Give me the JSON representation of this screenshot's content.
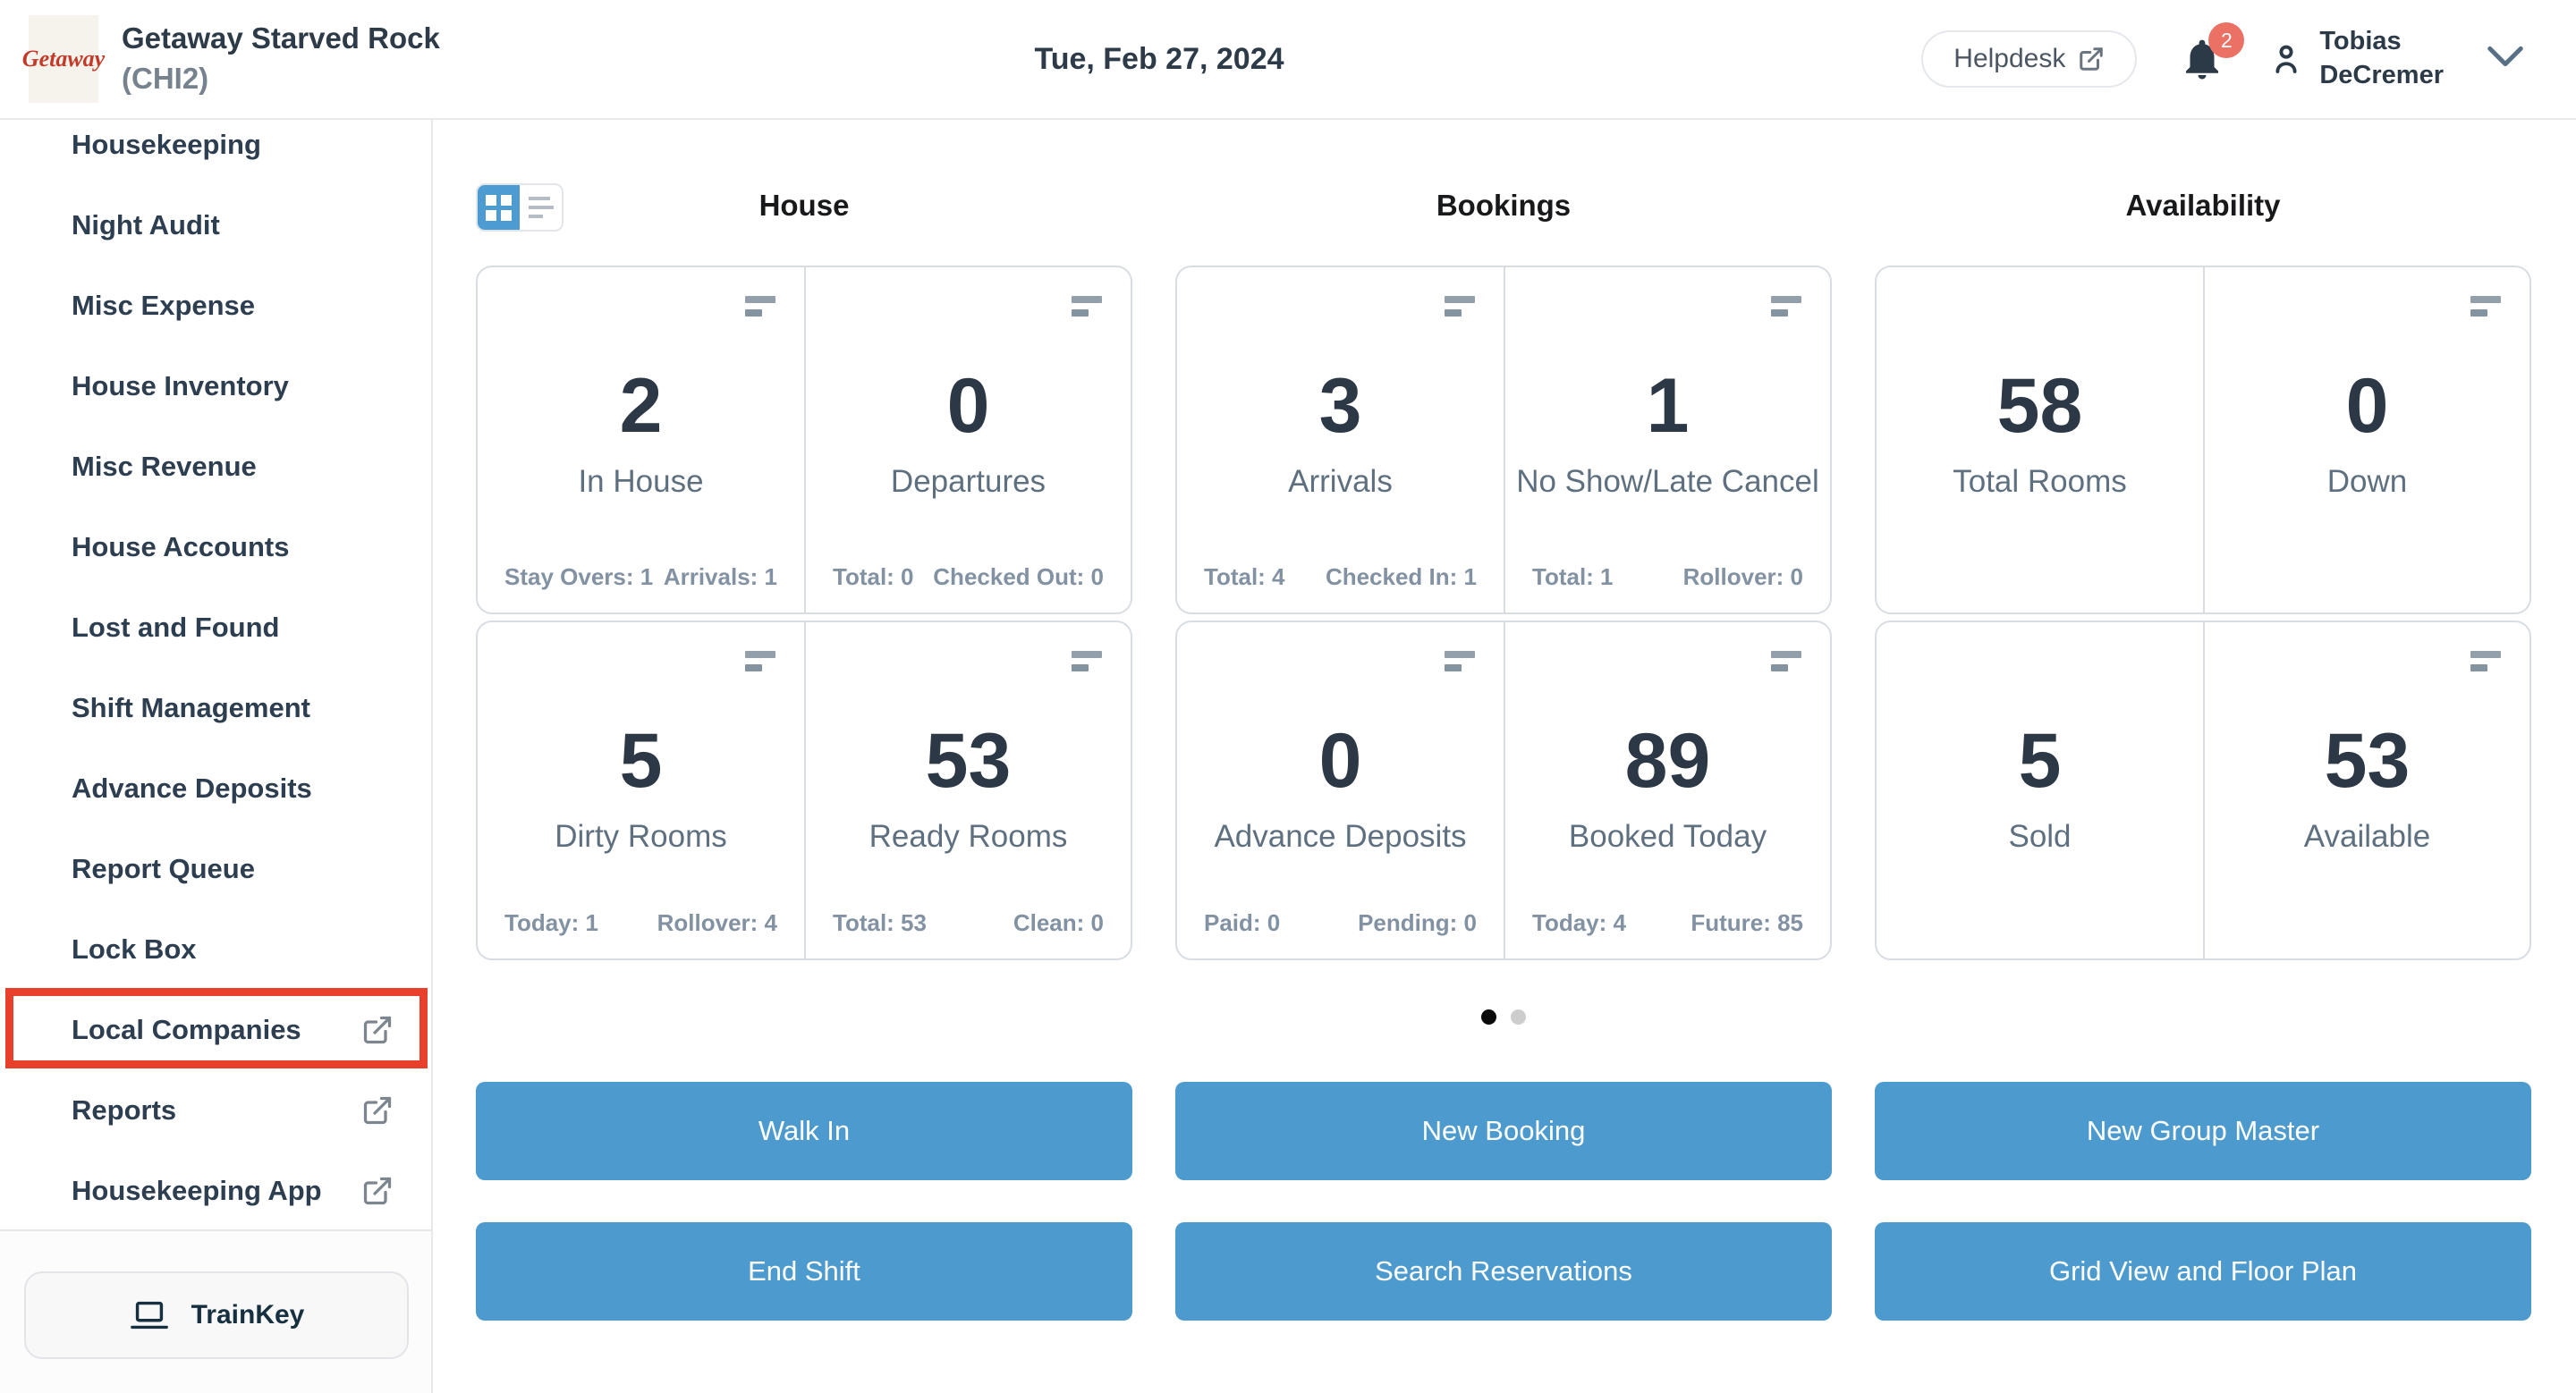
{
  "header": {
    "logo_text": "Getaway",
    "property_name": "Getaway Starved Rock",
    "property_code": "(CHI2)",
    "date": "Tue, Feb 27, 2024",
    "helpdesk_label": "Helpdesk",
    "notification_count": "2",
    "user_name_line1": "Tobias",
    "user_name_line2": "DeCremer"
  },
  "sidebar": {
    "items": [
      {
        "label": "Housekeeping",
        "external": false,
        "highlighted": false
      },
      {
        "label": "Night Audit",
        "external": false,
        "highlighted": false
      },
      {
        "label": "Misc Expense",
        "external": false,
        "highlighted": false
      },
      {
        "label": "House Inventory",
        "external": false,
        "highlighted": false
      },
      {
        "label": "Misc Revenue",
        "external": false,
        "highlighted": false
      },
      {
        "label": "House Accounts",
        "external": false,
        "highlighted": false
      },
      {
        "label": "Lost and Found",
        "external": false,
        "highlighted": false
      },
      {
        "label": "Shift Management",
        "external": false,
        "highlighted": false
      },
      {
        "label": "Advance Deposits",
        "external": false,
        "highlighted": false
      },
      {
        "label": "Report Queue",
        "external": false,
        "highlighted": false
      },
      {
        "label": "Lock Box",
        "external": false,
        "highlighted": false
      },
      {
        "label": "Local Companies",
        "external": true,
        "highlighted": true
      },
      {
        "label": "Reports",
        "external": true,
        "highlighted": false
      },
      {
        "label": "Housekeeping App",
        "external": true,
        "highlighted": false
      }
    ],
    "trainkey_label": "TrainKey"
  },
  "dashboard": {
    "view_toggle": {
      "active": "grid",
      "options": [
        "grid",
        "list"
      ]
    },
    "sections": [
      {
        "title": "House",
        "cards": [
          {
            "value": "2",
            "label": "In House",
            "icon": true,
            "stat_left": "Stay Overs: 1",
            "stat_right": "Arrivals: 1"
          },
          {
            "value": "0",
            "label": "Departures",
            "icon": true,
            "stat_left": "Total: 0",
            "stat_right": "Checked Out: 0"
          },
          {
            "value": "5",
            "label": "Dirty Rooms",
            "icon": true,
            "stat_left": "Today: 1",
            "stat_right": "Rollover: 4"
          },
          {
            "value": "53",
            "label": "Ready Rooms",
            "icon": true,
            "stat_left": "Total: 53",
            "stat_right": "Clean: 0"
          }
        ]
      },
      {
        "title": "Bookings",
        "cards": [
          {
            "value": "3",
            "label": "Arrivals",
            "icon": true,
            "stat_left": "Total: 4",
            "stat_right": "Checked In: 1"
          },
          {
            "value": "1",
            "label": "No Show/Late Cancel",
            "icon": true,
            "stat_left": "Total: 1",
            "stat_right": "Rollover: 0"
          },
          {
            "value": "0",
            "label": "Advance Deposits",
            "icon": true,
            "stat_left": "Paid: 0",
            "stat_right": "Pending: 0"
          },
          {
            "value": "89",
            "label": "Booked Today",
            "icon": true,
            "stat_left": "Today: 4",
            "stat_right": "Future: 85"
          }
        ]
      },
      {
        "title": "Availability",
        "cards": [
          {
            "value": "58",
            "label": "Total Rooms",
            "icon": false
          },
          {
            "value": "0",
            "label": "Down",
            "icon": true
          },
          {
            "value": "5",
            "label": "Sold",
            "icon": false
          },
          {
            "value": "53",
            "label": "Available",
            "icon": true
          }
        ]
      }
    ],
    "carousel": {
      "dot_count": 2,
      "active_index": 0
    },
    "action_buttons": [
      [
        "Walk In",
        "New Booking",
        "New Group Master"
      ],
      [
        "End Shift",
        "Search Reservations",
        "Grid View and Floor Plan"
      ]
    ]
  },
  "icons": {
    "helpdesk": "external-link-icon",
    "notifications": "bell-icon",
    "user": "person-icon",
    "user_menu": "chevron-down-icon",
    "sidebar_external": "external-link-icon",
    "trainkey": "laptop-icon",
    "view_toggle": [
      "grid-view-icon",
      "list-view-icon"
    ],
    "card_corner": "filter-lines-icon"
  },
  "colors": {
    "accent_blue": "#4d9bce",
    "toggle_blue": "#4c9bd1",
    "annotation_red": "#e8402a",
    "badge_red": "#ea7164",
    "logo_red": "#c23b2a",
    "active_dot": "#0a0a0a"
  }
}
